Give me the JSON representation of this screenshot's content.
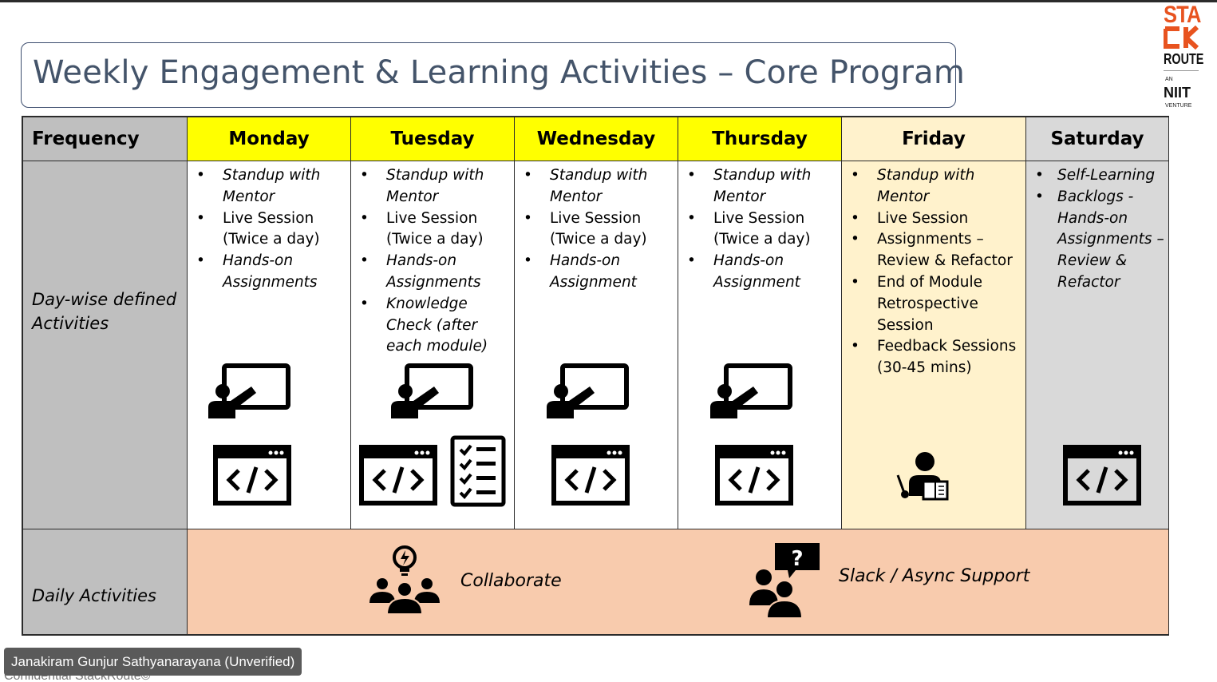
{
  "slide": {
    "title": "Weekly Engagement & Learning Activities – Core Program"
  },
  "logo": {
    "line1": "STA",
    "line2": "CK",
    "line3": "ROUTE",
    "an": "AN",
    "brand": "NIIT",
    "venture": "VENTURE",
    "accent_color": "#e8531f"
  },
  "table": {
    "headers": [
      "Frequency",
      "Monday",
      "Tuesday",
      "Wednesday",
      "Thursday",
      "Friday",
      "Saturday"
    ],
    "row_labels": {
      "daywise": "Day-wise defined Activities",
      "daily": "Daily Activities"
    },
    "days": {
      "monday": [
        "Standup with Mentor",
        "Live Session (Twice a day)",
        "Hands-on Assignments"
      ],
      "tuesday": [
        "Standup with Mentor",
        "Live Session (Twice a day)",
        "Hands-on Assignments",
        "Knowledge Check (after each module)"
      ],
      "wednesday": [
        "Standup with Mentor",
        "Live Session (Twice a day)",
        "Hands-on Assignment"
      ],
      "thursday": [
        "Standup with Mentor",
        "Live Session (Twice a day)",
        "Hands-on Assignment"
      ],
      "friday": [
        "Standup with Mentor",
        "Live Session",
        "Assignments – Review & Refactor",
        "End of Module Retrospective Session",
        "Feedback Sessions (30-45 mins)"
      ],
      "saturday": [
        "Self-Learning",
        "Backlogs - Hands-on Assignments – Review & Refactor"
      ]
    },
    "daily": {
      "collaborate": "Collaborate",
      "support": "Slack / Async Support"
    },
    "colors": {
      "weekday_header": "#ffff00",
      "friday": "#fff2cc",
      "saturday": "#d9d9d9",
      "label_column": "#bfbfbf",
      "daily_row": "#f8cbad"
    },
    "icons": [
      "presentation-icon",
      "code-window-icon",
      "checklist-icon",
      "teacher-reading-icon",
      "team-idea-icon",
      "help-chat-icon"
    ]
  },
  "meeting": {
    "participant": "Janakiram Gunjur Sathyanarayana (Unverified)"
  },
  "footer": {
    "text": "Confidential StackRoute©"
  }
}
